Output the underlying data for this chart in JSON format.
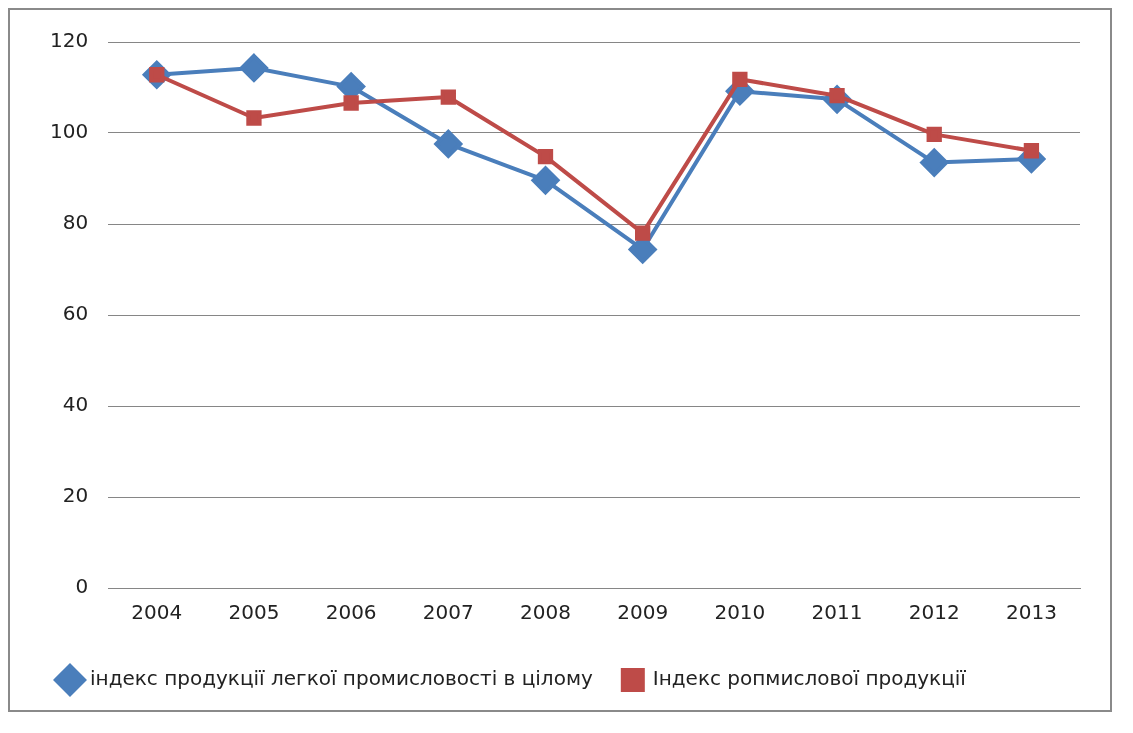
{
  "chart_data": {
    "type": "line",
    "categories": [
      "2004",
      "2005",
      "2006",
      "2007",
      "2008",
      "2009",
      "2010",
      "2011",
      "2012",
      "2013"
    ],
    "series": [
      {
        "name": "індекс продукції легкої промисловості в цілому",
        "color": "#4a7ebb",
        "marker": "diamond",
        "values": [
          112.8,
          114.3,
          110.2,
          97.6,
          89.6,
          74.4,
          109.2,
          107.4,
          93.5,
          94.3
        ]
      },
      {
        "name": "Індекс ропмислової продукції",
        "color": "#be4b48",
        "marker": "square",
        "values": [
          112.8,
          103.3,
          106.6,
          107.9,
          94.8,
          78.0,
          111.8,
          108.2,
          99.7,
          96.1
        ]
      }
    ],
    "ylim": [
      0,
      120
    ],
    "yticks": [
      0,
      20,
      40,
      60,
      80,
      100,
      120
    ],
    "grid": "y",
    "legend": "bottom"
  }
}
